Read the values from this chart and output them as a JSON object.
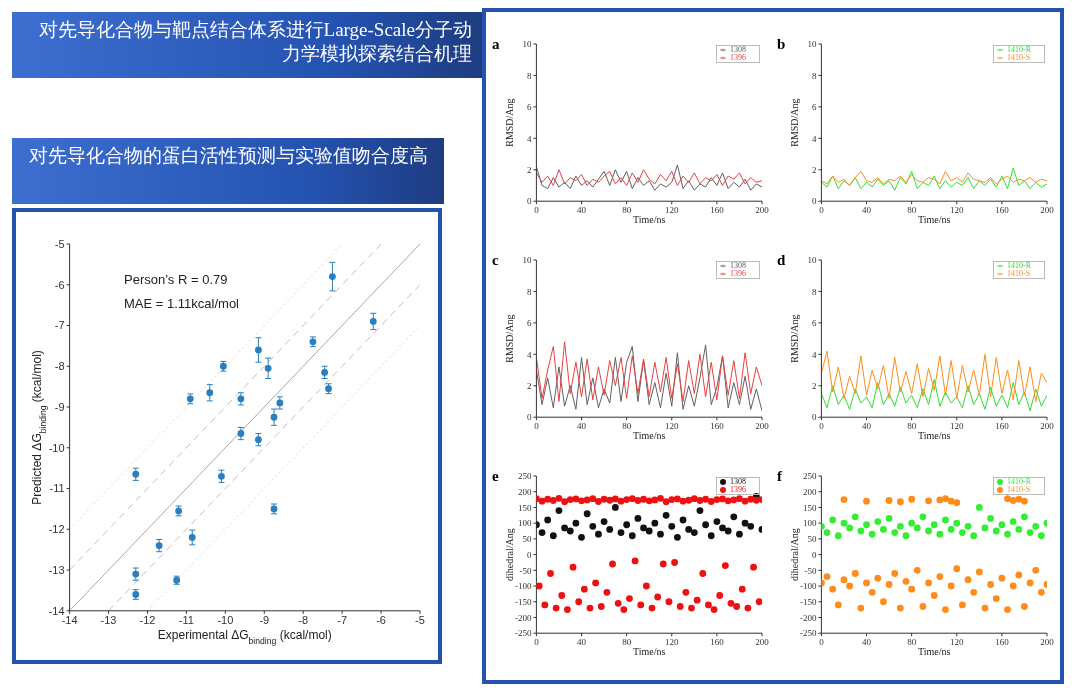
{
  "chart_data": [
    {
      "type": "scatter",
      "title": "对先导化合物的蛋白活性预测与实验值吻合度高",
      "xlabel": "Experimental ΔG$_{binding}$ (kcal/mol)",
      "ylabel": "Predicted ΔG$_{binding}$ (kcal/mol)",
      "annotations": [
        "Person’s R = 0.79",
        "MAE = 1.11kcal/mol"
      ],
      "xlim": [
        -14,
        -5
      ],
      "xticks": [
        -14,
        -13,
        -12,
        -11,
        -10,
        -9,
        -8,
        -7,
        -6,
        -5
      ],
      "ylim": [
        -14,
        -5
      ],
      "yticks": [
        -14,
        -13,
        -12,
        -11,
        -10,
        -9,
        -8,
        -7,
        -6,
        -5
      ],
      "grid": false,
      "legend": false,
      "series": [
        {
          "type": "line",
          "color": "#a8a8a8",
          "line_style": "solid",
          "marker": "none",
          "x": [
            -14,
            -5
          ],
          "values": [
            -14,
            -5
          ]
        },
        {
          "type": "line",
          "color": "#c9b9c9",
          "line_style": "dashed",
          "marker": "none",
          "x": [
            -14,
            -6
          ],
          "values": [
            -13,
            -5
          ]
        },
        {
          "type": "line",
          "color": "#c9b9c9",
          "line_style": "dashed",
          "marker": "none",
          "x": [
            -13,
            -5
          ],
          "values": [
            -14,
            -6
          ]
        },
        {
          "type": "line",
          "color": "#e6d6d6",
          "line_style": "dotted",
          "marker": "none",
          "x": [
            -14,
            -7
          ],
          "values": [
            -12,
            -5
          ]
        },
        {
          "type": "line",
          "color": "#e6d6d6",
          "line_style": "dotted",
          "marker": "none",
          "x": [
            -12,
            -5
          ],
          "values": [
            -14,
            -7
          ]
        },
        {
          "type": "scatter",
          "color": "#2a7fc0",
          "marker": "circle",
          "x": [
            -12.3,
            -12.3,
            -12.3,
            -11.7,
            -11.25,
            -11.2,
            -10.9,
            -10.85,
            -10.4,
            -10.1,
            -10.05,
            -9.6,
            -9.6,
            -9.15,
            -9.15,
            -8.9,
            -8.75,
            -8.75,
            -8.6,
            -7.75,
            -7.45,
            -7.35,
            -7.25,
            -6.2
          ],
          "values": [
            -10.65,
            -13.1,
            -13.6,
            -12.4,
            -13.25,
            -11.55,
            -8.8,
            -12.2,
            -8.65,
            -10.7,
            -8.0,
            -8.8,
            -9.65,
            -7.6,
            -9.8,
            -8.05,
            -9.25,
            -11.5,
            -8.9,
            -7.4,
            -8.15,
            -8.55,
            -5.8,
            -6.9
          ],
          "errors": [
            0.15,
            0.15,
            0.12,
            0.15,
            0.1,
            0.12,
            0.12,
            0.18,
            0.2,
            0.15,
            0.12,
            0.15,
            0.15,
            0.3,
            0.15,
            0.25,
            0.2,
            0.12,
            0.15,
            0.12,
            0.15,
            0.12,
            0.35,
            0.2
          ]
        }
      ]
    },
    {
      "type": "line",
      "title": "对先导化合物与靶点结合体系进行Large-Scale分子动力学模拟探索结合机理",
      "annotations": [
        "a"
      ],
      "xlabel": "Time/ns",
      "ylabel": "RMSD/Ang",
      "x": [
        0,
        5,
        10,
        15,
        20,
        25,
        30,
        35,
        40,
        45,
        50,
        55,
        60,
        65,
        70,
        75,
        80,
        85,
        90,
        95,
        100,
        105,
        110,
        115,
        120,
        125,
        130,
        135,
        140,
        145,
        150,
        155,
        160,
        165,
        170,
        175,
        180,
        185,
        190,
        195,
        200
      ],
      "xlim": [
        0,
        200
      ],
      "xticks": [
        0,
        40,
        80,
        120,
        160,
        200
      ],
      "ylim": [
        0,
        10
      ],
      "yticks": [
        0,
        2,
        4,
        6,
        8,
        10
      ],
      "legend": "top right",
      "grid": false,
      "marker": "none",
      "line_style": "solid",
      "series": [
        {
          "name": "1308",
          "color": "#606060",
          "values": [
            2.2,
            1.0,
            0.8,
            1.5,
            0.9,
            1.2,
            0.8,
            1.6,
            1.0,
            1.3,
            0.9,
            1.4,
            1.9,
            1.0,
            2.0,
            1.2,
            1.9,
            0.8,
            1.5,
            1.0,
            1.3,
            0.7,
            1.1,
            0.9,
            1.2,
            2.3,
            0.8,
            1.3,
            0.7,
            1.1,
            0.9,
            1.5,
            1.0,
            1.8,
            0.8,
            1.2,
            0.9,
            1.4,
            0.7,
            1.1,
            0.9
          ]
        },
        {
          "name": "1396",
          "color": "#e84040",
          "values": [
            1.8,
            1.2,
            1.6,
            1.0,
            2.0,
            1.1,
            1.5,
            1.3,
            1.7,
            1.0,
            1.4,
            1.2,
            1.6,
            1.9,
            1.1,
            1.5,
            1.0,
            1.8,
            1.2,
            2.0,
            1.4,
            1.1,
            1.7,
            1.3,
            1.9,
            1.0,
            1.6,
            1.2,
            1.8,
            1.1,
            1.5,
            1.3,
            1.7,
            1.0,
            1.6,
            1.4,
            1.8,
            1.1,
            1.5,
            1.2,
            1.3
          ]
        }
      ]
    },
    {
      "type": "line",
      "annotations": [
        "b"
      ],
      "xlabel": "Time/ns",
      "ylabel": "RMSD/Ang",
      "x": [
        0,
        5,
        10,
        15,
        20,
        25,
        30,
        35,
        40,
        45,
        50,
        55,
        60,
        65,
        70,
        75,
        80,
        85,
        90,
        95,
        100,
        105,
        110,
        115,
        120,
        125,
        130,
        135,
        140,
        145,
        150,
        155,
        160,
        165,
        170,
        175,
        180,
        185,
        190,
        195,
        200
      ],
      "xlim": [
        0,
        200
      ],
      "xticks": [
        0,
        40,
        80,
        120,
        160,
        200
      ],
      "ylim": [
        0,
        10
      ],
      "yticks": [
        0,
        2,
        4,
        6,
        8,
        10
      ],
      "legend": "top right",
      "grid": false,
      "marker": "none",
      "line_style": "solid",
      "series": [
        {
          "name": "1410-R",
          "color": "#33dd33",
          "values": [
            1.2,
            0.9,
            1.6,
            0.8,
            1.3,
            1.0,
            1.5,
            0.8,
            1.2,
            0.9,
            1.4,
            1.0,
            1.3,
            0.7,
            1.5,
            1.1,
            1.9,
            0.8,
            1.2,
            1.0,
            1.6,
            0.8,
            1.3,
            0.9,
            1.2,
            1.0,
            1.5,
            0.8,
            1.3,
            1.0,
            1.4,
            0.9,
            1.6,
            0.8,
            2.1,
            1.0,
            1.3,
            0.8,
            1.2,
            0.9,
            1.1
          ]
        },
        {
          "name": "1410-S",
          "color": "#ff8c1a",
          "values": [
            1.3,
            1.1,
            1.6,
            1.2,
            1.4,
            1.0,
            1.5,
            1.9,
            1.3,
            1.2,
            1.5,
            1.1,
            1.4,
            1.3,
            1.6,
            1.2,
            1.7,
            1.3,
            1.2,
            1.5,
            1.4,
            1.1,
            1.9,
            1.3,
            1.5,
            1.2,
            1.8,
            1.4,
            1.3,
            1.2,
            1.5,
            1.1,
            1.4,
            1.6,
            1.2,
            1.4,
            1.3,
            1.5,
            1.2,
            1.4,
            1.3
          ]
        }
      ]
    },
    {
      "type": "line",
      "annotations": [
        "c"
      ],
      "xlabel": "Time/ns",
      "ylabel": "RMSD/Ang",
      "x": [
        0,
        5,
        10,
        15,
        20,
        25,
        30,
        35,
        40,
        45,
        50,
        55,
        60,
        65,
        70,
        75,
        80,
        85,
        90,
        95,
        100,
        105,
        110,
        115,
        120,
        125,
        130,
        135,
        140,
        145,
        150,
        155,
        160,
        165,
        170,
        175,
        180,
        185,
        190,
        195,
        200
      ],
      "xlim": [
        0,
        200
      ],
      "xticks": [
        0,
        40,
        80,
        120,
        160,
        200
      ],
      "ylim": [
        0,
        10
      ],
      "yticks": [
        0,
        2,
        4,
        6,
        8,
        10
      ],
      "legend": "top right",
      "grid": false,
      "marker": "none",
      "line_style": "solid",
      "series": [
        {
          "name": "1308",
          "color": "#606060",
          "values": [
            3.0,
            0.8,
            2.5,
            0.6,
            3.2,
            0.7,
            2.0,
            0.5,
            3.8,
            0.8,
            2.5,
            0.6,
            1.8,
            0.9,
            3.8,
            1.0,
            3.5,
            4.5,
            1.0,
            3.6,
            0.8,
            2.2,
            0.6,
            2.8,
            0.7,
            4.1,
            0.5,
            2.0,
            0.7,
            2.5,
            4.6,
            0.8,
            1.9,
            3.9,
            0.6,
            2.2,
            0.8,
            2.6,
            0.5,
            1.8,
            0.4
          ]
        },
        {
          "name": "1396",
          "color": "#e84040",
          "values": [
            3.8,
            1.2,
            3.0,
            4.5,
            1.0,
            4.8,
            1.5,
            3.5,
            1.3,
            3.7,
            1.1,
            3.2,
            1.4,
            3.6,
            2.0,
            3.8,
            1.2,
            3.9,
            1.5,
            3.7,
            1.3,
            3.5,
            1.6,
            3.8,
            1.2,
            3.4,
            1.0,
            3.6,
            1.5,
            4.0,
            1.3,
            3.5,
            1.1,
            3.9,
            1.4,
            3.6,
            1.2,
            4.1,
            1.5,
            3.2,
            2.0
          ]
        }
      ]
    },
    {
      "type": "line",
      "annotations": [
        "d"
      ],
      "xlabel": "Time/ns",
      "ylabel": "RMSD/Ang",
      "x": [
        0,
        5,
        10,
        15,
        20,
        25,
        30,
        35,
        40,
        45,
        50,
        55,
        60,
        65,
        70,
        75,
        80,
        85,
        90,
        95,
        100,
        105,
        110,
        115,
        120,
        125,
        130,
        135,
        140,
        145,
        150,
        155,
        160,
        165,
        170,
        175,
        180,
        185,
        190,
        195,
        200
      ],
      "xlim": [
        0,
        200
      ],
      "xticks": [
        0,
        40,
        80,
        120,
        160,
        200
      ],
      "ylim": [
        0,
        10
      ],
      "yticks": [
        0,
        2,
        4,
        6,
        8,
        10
      ],
      "legend": "top right",
      "grid": false,
      "marker": "none",
      "line_style": "solid",
      "series": [
        {
          "name": "1410-R",
          "color": "#33dd33",
          "values": [
            1.5,
            0.6,
            2.0,
            0.8,
            1.4,
            0.5,
            1.8,
            0.9,
            1.3,
            0.6,
            2.2,
            0.8,
            1.5,
            0.7,
            1.9,
            0.9,
            1.4,
            0.6,
            1.8,
            0.8,
            2.4,
            0.7,
            1.6,
            0.9,
            1.3,
            0.6,
            2.0,
            0.8,
            1.5,
            0.5,
            1.9,
            0.7,
            1.4,
            0.6,
            2.2,
            0.8,
            1.6,
            0.4,
            1.8,
            0.7,
            1.4
          ]
        },
        {
          "name": "1410-S",
          "color": "#ff8c1a",
          "values": [
            2.8,
            4.2,
            1.6,
            3.2,
            1.2,
            2.6,
            1.5,
            3.9,
            1.4,
            3.0,
            1.8,
            3.3,
            1.2,
            3.8,
            1.6,
            2.9,
            1.5,
            3.4,
            1.3,
            3.1,
            1.7,
            3.9,
            1.4,
            3.6,
            1.2,
            3.3,
            1.6,
            3.0,
            1.4,
            4.0,
            1.3,
            3.8,
            1.5,
            3.0,
            1.1,
            3.6,
            1.4,
            3.2,
            1.0,
            2.8,
            2.2
          ]
        }
      ]
    },
    {
      "type": "scatter",
      "annotations": [
        "e"
      ],
      "xlabel": "Time/ns",
      "ylabel": "dihedral/Ang",
      "xlim": [
        0,
        200
      ],
      "xticks": [
        0,
        40,
        80,
        120,
        160,
        200
      ],
      "ylim": [
        -250,
        250
      ],
      "yticks": [
        -250,
        -200,
        -150,
        -100,
        -50,
        0,
        50,
        100,
        150,
        200,
        250
      ],
      "legend": "top right",
      "grid": false,
      "marker": "circle",
      "series": [
        {
          "name": "1308",
          "color": "#111111",
          "x": [
            0,
            5,
            10,
            15,
            20,
            25,
            30,
            35,
            40,
            45,
            50,
            55,
            60,
            65,
            70,
            75,
            80,
            85,
            90,
            95,
            100,
            105,
            110,
            115,
            120,
            125,
            130,
            135,
            140,
            145,
            150,
            155,
            160,
            165,
            170,
            175,
            180,
            185,
            190,
            195,
            200
          ],
          "values": [
            95,
            70,
            110,
            60,
            140,
            85,
            75,
            100,
            55,
            130,
            90,
            65,
            105,
            80,
            150,
            70,
            95,
            60,
            115,
            85,
            75,
            100,
            65,
            125,
            90,
            55,
            110,
            80,
            70,
            140,
            95,
            60,
            105,
            85,
            75,
            120,
            65,
            100,
            90,
            185,
            80
          ]
        },
        {
          "name": "1396",
          "color": "#ee1111",
          "x": [
            0,
            5,
            10,
            15,
            20,
            25,
            30,
            35,
            40,
            45,
            50,
            55,
            60,
            65,
            70,
            75,
            80,
            85,
            90,
            95,
            100,
            105,
            110,
            115,
            120,
            125,
            130,
            135,
            140,
            145,
            150,
            155,
            160,
            165,
            170,
            175,
            180,
            185,
            190,
            195,
            200,
            2.5,
            7.5,
            12.5,
            17.5,
            22.5,
            27.5,
            32.5,
            37.5,
            42.5,
            47.5,
            52.5,
            57.5,
            62.5,
            67.5,
            72.5,
            77.5,
            82.5,
            87.5,
            92.5,
            97.5,
            102.5,
            107.5,
            112.5,
            117.5,
            122.5,
            127.5,
            132.5,
            137.5,
            142.5,
            147.5,
            152.5,
            157.5,
            162.5,
            167.5,
            172.5,
            177.5,
            182.5,
            187.5,
            192.5,
            197.5
          ],
          "values": [
            178,
            170,
            176,
            172,
            179,
            168,
            175,
            177,
            171,
            174,
            178,
            169,
            176,
            173,
            177,
            170,
            175,
            178,
            172,
            176,
            171,
            174,
            179,
            168,
            175,
            177,
            170,
            173,
            178,
            172,
            176,
            169,
            175,
            177,
            171,
            174,
            178,
            170,
            176,
            173,
            175,
            -100,
            -160,
            -60,
            -170,
            -130,
            -175,
            -40,
            -150,
            -110,
            -170,
            -90,
            -165,
            -120,
            -30,
            -155,
            -175,
            -140,
            -20,
            -160,
            -100,
            -170,
            -135,
            -30,
            -150,
            -25,
            -165,
            -120,
            -170,
            -145,
            -60,
            -160,
            -175,
            -130,
            -35,
            -155,
            -165,
            -110,
            -170,
            -40,
            -150
          ]
        }
      ]
    },
    {
      "type": "scatter",
      "annotations": [
        "f"
      ],
      "xlabel": "Time/ns",
      "ylabel": "dihedral/Ang",
      "xlim": [
        0,
        200
      ],
      "xticks": [
        0,
        40,
        80,
        120,
        160,
        200
      ],
      "ylim": [
        -250,
        250
      ],
      "yticks": [
        -250,
        -200,
        -150,
        -100,
        -50,
        0,
        50,
        100,
        150,
        200,
        250
      ],
      "legend": "top right",
      "grid": false,
      "marker": "circle",
      "series": [
        {
          "name": "1410-R",
          "color": "#33ee33",
          "x": [
            0,
            5,
            10,
            15,
            20,
            25,
            30,
            35,
            40,
            45,
            50,
            55,
            60,
            65,
            70,
            75,
            80,
            85,
            90,
            95,
            100,
            105,
            110,
            115,
            120,
            125,
            130,
            135,
            140,
            145,
            150,
            155,
            160,
            165,
            170,
            175,
            180,
            185,
            190,
            195,
            200
          ],
          "values": [
            90,
            70,
            110,
            60,
            100,
            85,
            120,
            75,
            95,
            65,
            105,
            80,
            115,
            70,
            90,
            60,
            100,
            85,
            120,
            75,
            95,
            65,
            110,
            80,
            100,
            70,
            90,
            60,
            150,
            85,
            115,
            75,
            95,
            65,
            105,
            80,
            120,
            70,
            90,
            60,
            100
          ]
        },
        {
          "name": "1410-S",
          "color": "#ff8c1a",
          "x": [
            0,
            5,
            10,
            15,
            20,
            25,
            30,
            35,
            40,
            45,
            50,
            55,
            60,
            65,
            70,
            75,
            80,
            85,
            90,
            95,
            100,
            105,
            110,
            115,
            120,
            125,
            130,
            135,
            140,
            145,
            150,
            155,
            160,
            165,
            170,
            175,
            180,
            185,
            190,
            195,
            200,
            20,
            40,
            60,
            70,
            80,
            95,
            105,
            110,
            115,
            120,
            165,
            170,
            175,
            180
          ],
          "values": [
            -90,
            -70,
            -110,
            -160,
            -80,
            -100,
            -60,
            -170,
            -90,
            -120,
            -75,
            -150,
            -95,
            -60,
            -170,
            -85,
            -110,
            -50,
            -165,
            -90,
            -130,
            -70,
            -175,
            -100,
            -45,
            -160,
            -80,
            -120,
            -55,
            -170,
            -95,
            -140,
            -75,
            -175,
            -100,
            -65,
            -165,
            -90,
            -50,
            -120,
            -95,
            175,
            170,
            172,
            168,
            176,
            171,
            174,
            178,
            170,
            165,
            178,
            172,
            176,
            170
          ]
        }
      ]
    }
  ]
}
